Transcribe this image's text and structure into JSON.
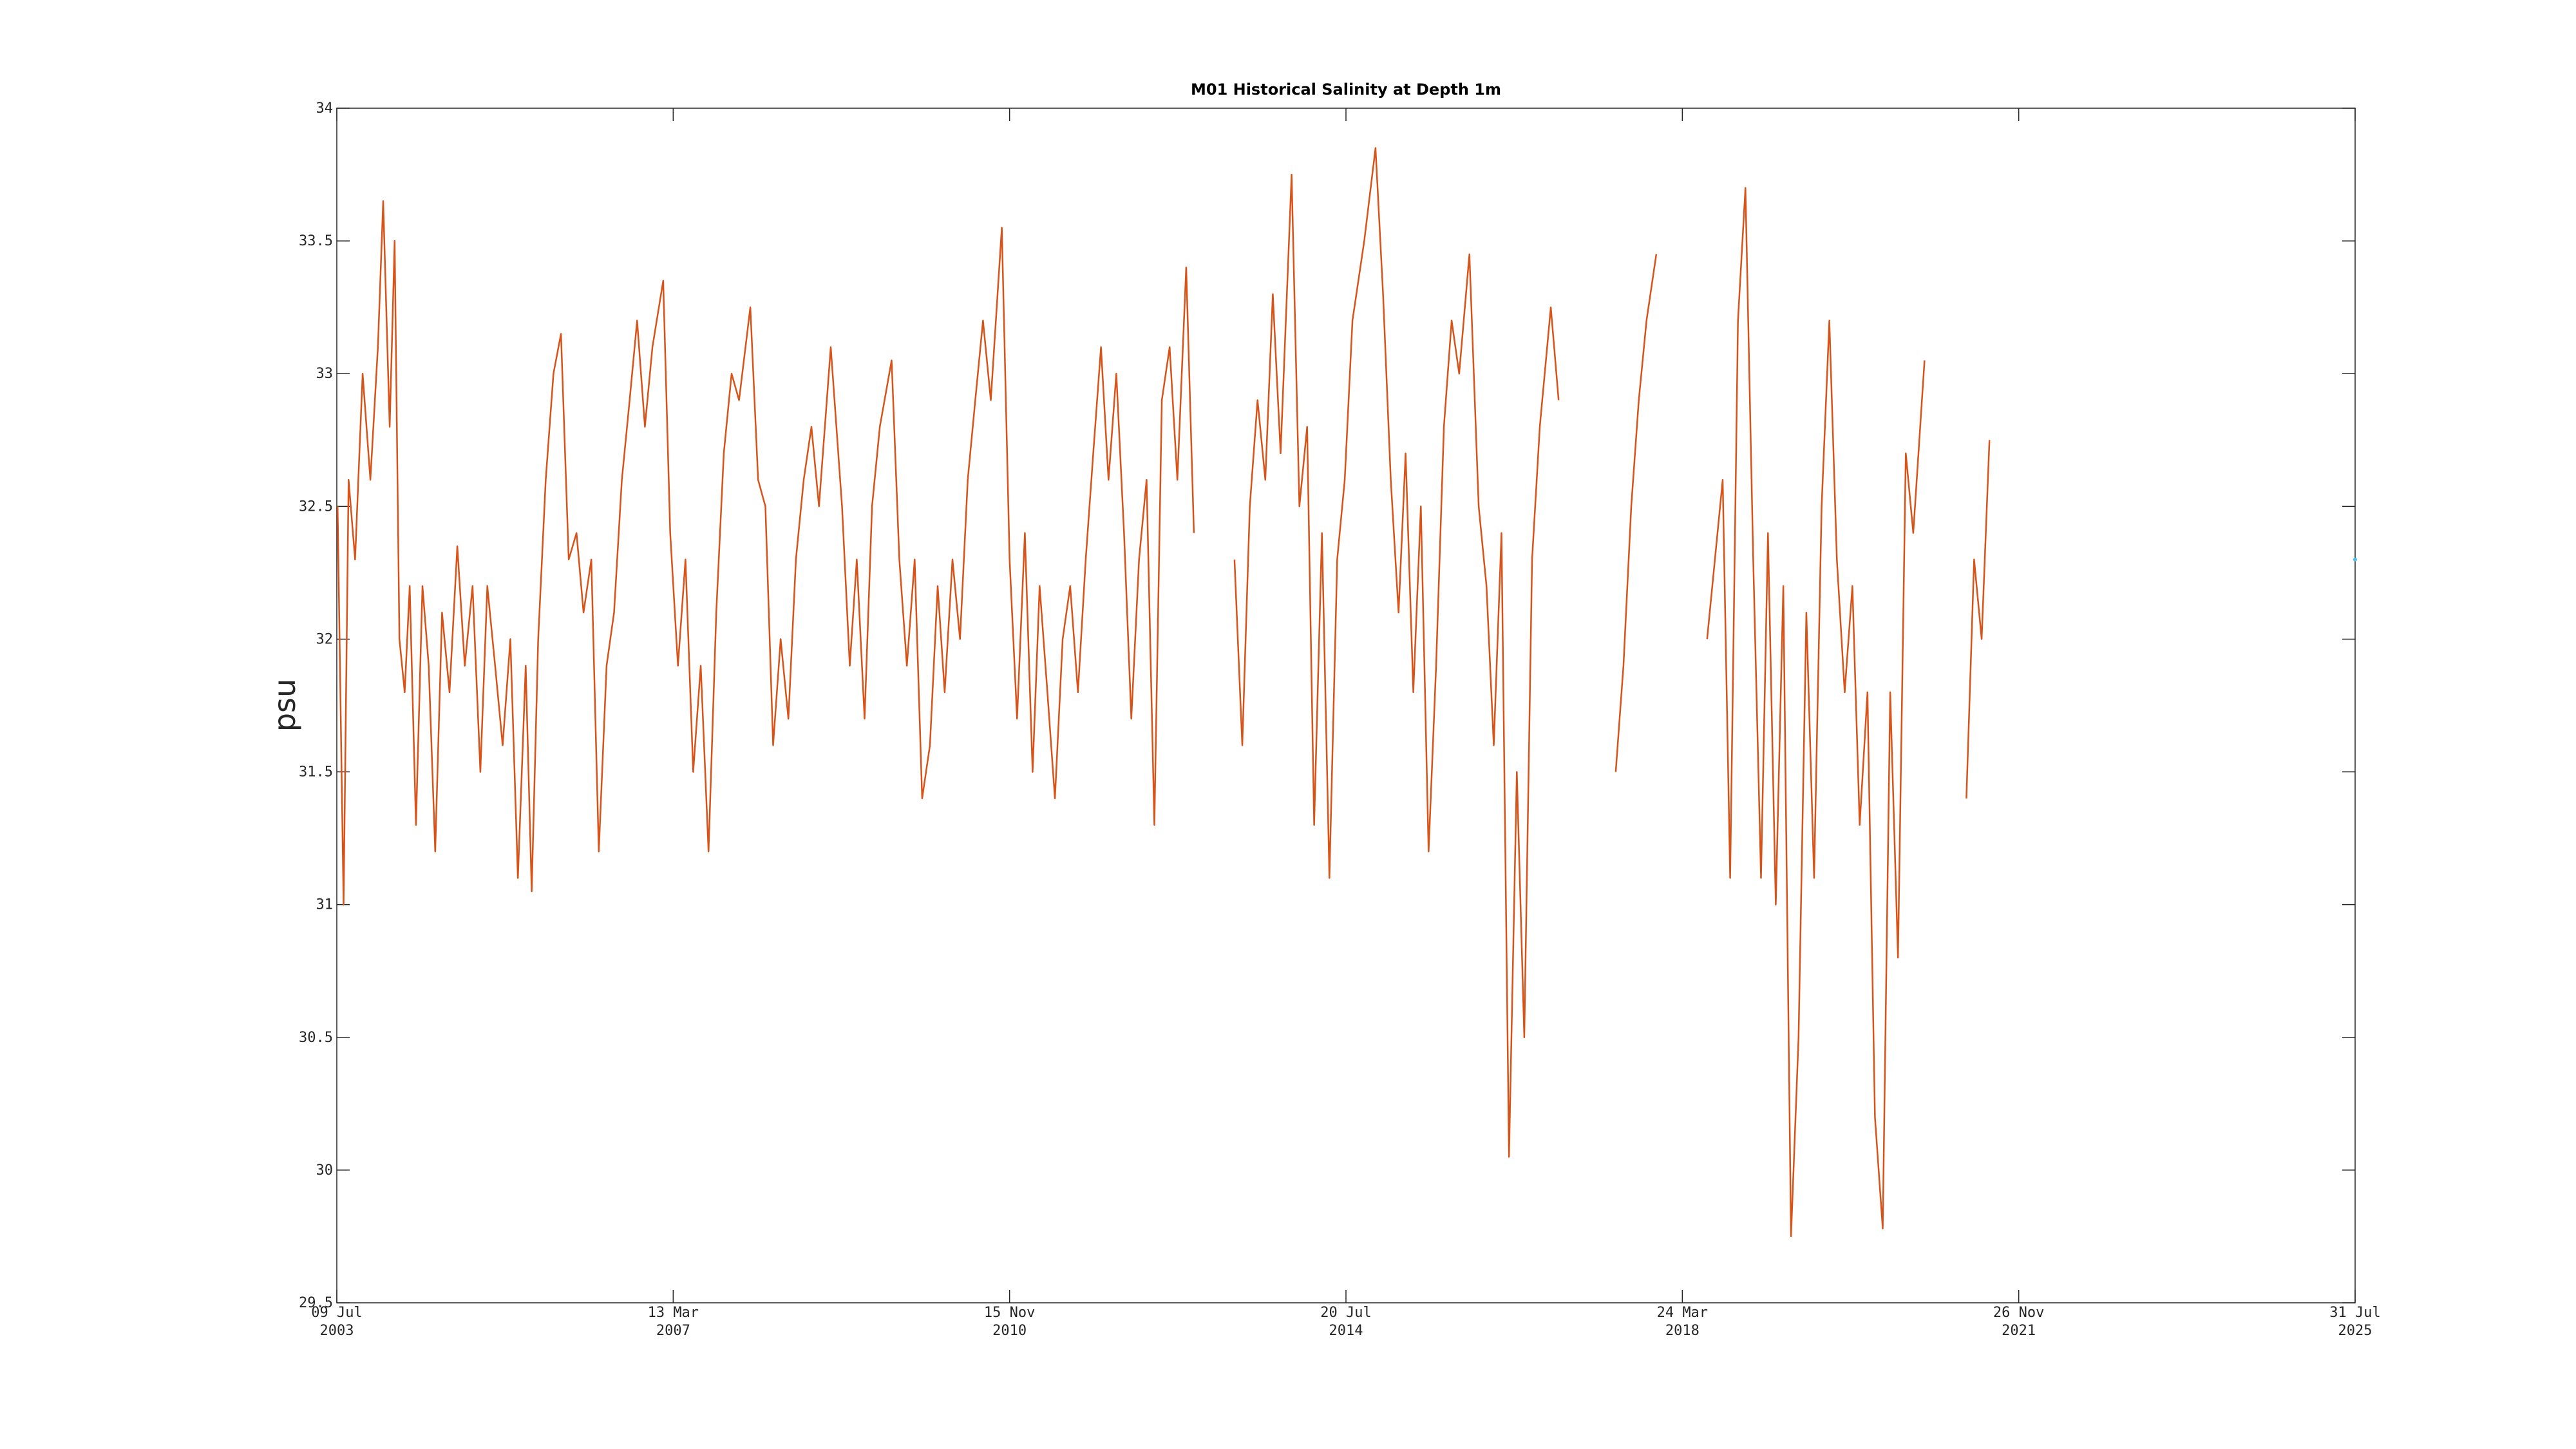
{
  "chart_data": {
    "type": "line",
    "title": "M01 Historical Salinity at Depth 1m",
    "y_label": "psu",
    "xlim": [
      "2003-07-09",
      "2025-07-31"
    ],
    "xticks": [
      {
        "value": "2003-07-09",
        "label": [
          "09 Jul",
          "2003"
        ]
      },
      {
        "value": "2007-03-13",
        "label": [
          "13 Mar",
          "2007"
        ]
      },
      {
        "value": "2010-11-15",
        "label": [
          "15 Nov",
          "2010"
        ]
      },
      {
        "value": "2014-07-20",
        "label": [
          "20 Jul",
          "2014"
        ]
      },
      {
        "value": "2018-03-24",
        "label": [
          "24 Mar",
          "2018"
        ]
      },
      {
        "value": "2021-11-26",
        "label": [
          "26 Nov",
          "2021"
        ]
      },
      {
        "value": "2025-07-31",
        "label": [
          "31 Jul",
          "2025"
        ]
      }
    ],
    "ylim": [
      29.5,
      34
    ],
    "yticks": [
      29.5,
      30,
      30.5,
      31,
      31.5,
      32,
      32.5,
      33,
      33.5,
      34
    ],
    "grid": false,
    "series": [
      {
        "color": "#d95319",
        "x": [
          "2003-07-12",
          "2003-08-05",
          "2003-08-25",
          "2003-09-20",
          "2003-10-20",
          "2003-11-20",
          "2003-12-20",
          "2004-01-10",
          "2004-02-05",
          "2004-02-25",
          "2004-03-15",
          "2004-04-05",
          "2004-04-25",
          "2004-05-20",
          "2004-06-15",
          "2004-07-10",
          "2004-08-05",
          "2004-09-01",
          "2004-10-01",
          "2004-11-01",
          "2004-12-01",
          "2005-01-01",
          "2005-02-01",
          "2005-03-01",
          "2005-04-01",
          "2005-05-01",
          "2005-06-01",
          "2005-07-01",
          "2005-08-01",
          "2005-08-25",
          "2005-09-20",
          "2005-10-20",
          "2005-11-20",
          "2005-12-20",
          "2006-01-20",
          "2006-02-20",
          "2006-03-20",
          "2006-04-20",
          "2006-05-20",
          "2006-06-20",
          "2006-07-20",
          "2006-08-20",
          "2006-09-20",
          "2006-10-20",
          "2006-11-20",
          "2006-12-20",
          "2007-02-01",
          "2007-03-01",
          "2007-04-01",
          "2007-05-01",
          "2007-06-01",
          "2007-07-01",
          "2007-08-01",
          "2007-09-01",
          "2007-10-01",
          "2007-11-01",
          "2007-12-01",
          "2008-01-15",
          "2008-02-15",
          "2008-03-15",
          "2008-04-15",
          "2008-05-15",
          "2008-06-15",
          "2008-07-15",
          "2008-08-15",
          "2008-09-15",
          "2008-10-15",
          "2008-12-01",
          "2009-01-15",
          "2009-02-15",
          "2009-03-15",
          "2009-04-15",
          "2009-05-15",
          "2009-06-15",
          "2009-08-01",
          "2009-09-01",
          "2009-10-01",
          "2009-11-01",
          "2009-12-01",
          "2010-01-01",
          "2010-02-01",
          "2010-03-01",
          "2010-04-01",
          "2010-05-01",
          "2010-06-01",
          "2010-07-01",
          "2010-08-01",
          "2010-09-01",
          "2010-10-15",
          "2010-11-15",
          "2010-12-15",
          "2011-01-15",
          "2011-02-15",
          "2011-03-15",
          "2011-04-15",
          "2011-05-15",
          "2011-06-15",
          "2011-07-15",
          "2011-08-15",
          "2011-09-15",
          "2011-10-15",
          "2011-11-15",
          "2011-12-15",
          "2012-01-15",
          "2012-02-15",
          "2012-03-15",
          "2012-04-15",
          "2012-05-15",
          "2012-06-15",
          "2012-07-15",
          "2012-08-15",
          "2012-09-15",
          "2012-10-20",
          "2012-11-20",
          "2012-12-15",
          "2013-05-01",
          "2013-06-01",
          "2013-07-01",
          "2013-08-01",
          "2013-09-01",
          "2013-10-01",
          "2013-11-01",
          "2013-12-15",
          "2014-01-15",
          "2014-02-15",
          "2014-03-15",
          "2014-04-15",
          "2014-05-15",
          "2014-06-15",
          "2014-07-15",
          "2014-08-15",
          "2014-10-01",
          "2014-11-15",
          "2014-12-15",
          "2015-01-15",
          "2015-02-15",
          "2015-03-15",
          "2015-04-15",
          "2015-05-15",
          "2015-06-15",
          "2015-07-15",
          "2015-08-15",
          "2015-09-15",
          "2015-10-15",
          "2015-11-25",
          "2016-01-01",
          "2016-02-01",
          "2016-03-01",
          "2016-04-01",
          "2016-05-01",
          "2016-06-01",
          "2016-07-01",
          "2016-08-01",
          "2016-09-01",
          "2016-10-15",
          "2016-11-15",
          "2016-12-01",
          "2017-07-01",
          "2017-08-01",
          "2017-09-01",
          "2017-10-01",
          "2017-11-01",
          "2017-12-10",
          "2018-01-01",
          "2018-07-01",
          "2018-08-01",
          "2018-09-01",
          "2018-10-01",
          "2018-11-01",
          "2018-12-01",
          "2019-01-01",
          "2019-02-01",
          "2019-03-01",
          "2019-04-01",
          "2019-05-01",
          "2019-06-01",
          "2019-07-01",
          "2019-08-01",
          "2019-09-01",
          "2019-10-01",
          "2019-11-01",
          "2019-12-01",
          "2020-01-01",
          "2020-02-01",
          "2020-03-01",
          "2020-04-01",
          "2020-05-01",
          "2020-06-01",
          "2020-07-01",
          "2020-08-01",
          "2020-09-01",
          "2020-10-01",
          "2020-11-15",
          "2020-12-01",
          "2021-05-01",
          "2021-06-01",
          "2021-07-01",
          "2021-08-01"
        ],
        "values": [
          32.5,
          31.0,
          32.6,
          32.3,
          33.0,
          32.6,
          33.1,
          33.65,
          32.8,
          33.5,
          32.0,
          31.8,
          32.2,
          31.3,
          32.2,
          31.9,
          31.2,
          32.1,
          31.8,
          32.35,
          31.9,
          32.2,
          31.5,
          32.2,
          31.9,
          31.6,
          32.0,
          31.1,
          31.9,
          31.05,
          32.0,
          32.6,
          33.0,
          33.15,
          32.3,
          32.4,
          32.1,
          32.3,
          31.2,
          31.9,
          32.1,
          32.6,
          32.9,
          33.2,
          32.8,
          33.1,
          33.35,
          32.4,
          31.9,
          32.3,
          31.5,
          31.9,
          31.2,
          32.1,
          32.7,
          33.0,
          32.9,
          33.25,
          32.6,
          32.5,
          31.6,
          32.0,
          31.7,
          32.3,
          32.6,
          32.8,
          32.5,
          33.1,
          32.5,
          31.9,
          32.3,
          31.7,
          32.5,
          32.8,
          33.05,
          32.3,
          31.9,
          32.3,
          31.4,
          31.6,
          32.2,
          31.8,
          32.3,
          32.0,
          32.6,
          32.9,
          33.2,
          32.9,
          33.55,
          32.3,
          31.7,
          32.4,
          31.5,
          32.2,
          31.8,
          31.4,
          32.0,
          32.2,
          31.8,
          32.3,
          32.7,
          33.1,
          32.6,
          33.0,
          32.4,
          31.7,
          32.3,
          32.6,
          31.3,
          32.9,
          33.1,
          32.6,
          33.4,
          32.4,
          null,
          32.3,
          31.6,
          32.5,
          32.9,
          32.6,
          33.3,
          32.7,
          33.75,
          32.5,
          32.8,
          31.3,
          32.4,
          31.1,
          32.3,
          32.6,
          33.2,
          33.5,
          33.85,
          33.3,
          32.6,
          32.1,
          32.7,
          31.8,
          32.5,
          31.2,
          31.9,
          32.8,
          33.2,
          33.0,
          33.45,
          32.5,
          32.2,
          31.6,
          32.4,
          30.05,
          31.5,
          30.5,
          32.3,
          32.8,
          33.25,
          32.9,
          null,
          31.5,
          31.9,
          32.5,
          32.9,
          33.2,
          33.45,
          null,
          32.0,
          32.3,
          32.6,
          31.1,
          33.2,
          33.7,
          32.3,
          31.1,
          32.4,
          31.0,
          32.2,
          29.75,
          30.5,
          32.1,
          31.1,
          32.5,
          33.2,
          32.3,
          31.8,
          32.2,
          31.3,
          31.8,
          30.2,
          29.78,
          31.8,
          30.8,
          32.7,
          32.4,
          33.05,
          null,
          31.4,
          32.3,
          32.0,
          32.75
        ]
      },
      {
        "color": "#4dbeee",
        "x": [
          "2025-07-31"
        ],
        "values": [
          32.3
        ]
      }
    ]
  }
}
